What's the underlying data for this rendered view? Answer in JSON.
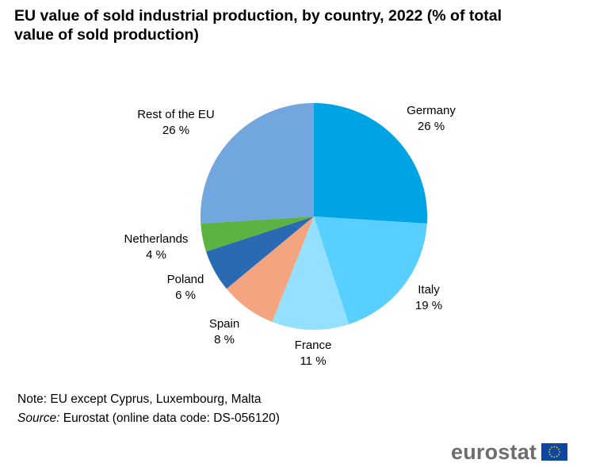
{
  "title": "EU value of sold industrial production, by country, 2022 (% of total value of sold production)",
  "note": {
    "note_text": "Note: EU except Cyprus, Luxembourg, Malta",
    "source_label": "Source:",
    "source_text": " Eurostat (online data code: DS-056120)"
  },
  "logo": {
    "text": "eurostat",
    "flag_icon": "eu-flag-icon"
  },
  "chart_data": {
    "type": "pie",
    "title": "EU value of sold industrial production, by country, 2022 (% of total value of sold production)",
    "start": "12 o'clock, clockwise",
    "slices": [
      {
        "name": "Germany",
        "value": 26,
        "label": "26 %",
        "color": "#00a4e4"
      },
      {
        "name": "Italy",
        "value": 19,
        "label": "19 %",
        "color": "#58cfff"
      },
      {
        "name": "France",
        "value": 11,
        "label": "11 %",
        "color": "#94e0ff"
      },
      {
        "name": "Spain",
        "value": 8,
        "label": "8 %",
        "color": "#f4a57f"
      },
      {
        "name": "Poland",
        "value": 6,
        "label": "6 %",
        "color": "#2a6ab3"
      },
      {
        "name": "Netherlands",
        "value": 4,
        "label": "4 %",
        "color": "#5db342"
      },
      {
        "name": "Rest of the EU",
        "value": 26,
        "label": "26 %",
        "color": "#71a7de"
      }
    ]
  }
}
